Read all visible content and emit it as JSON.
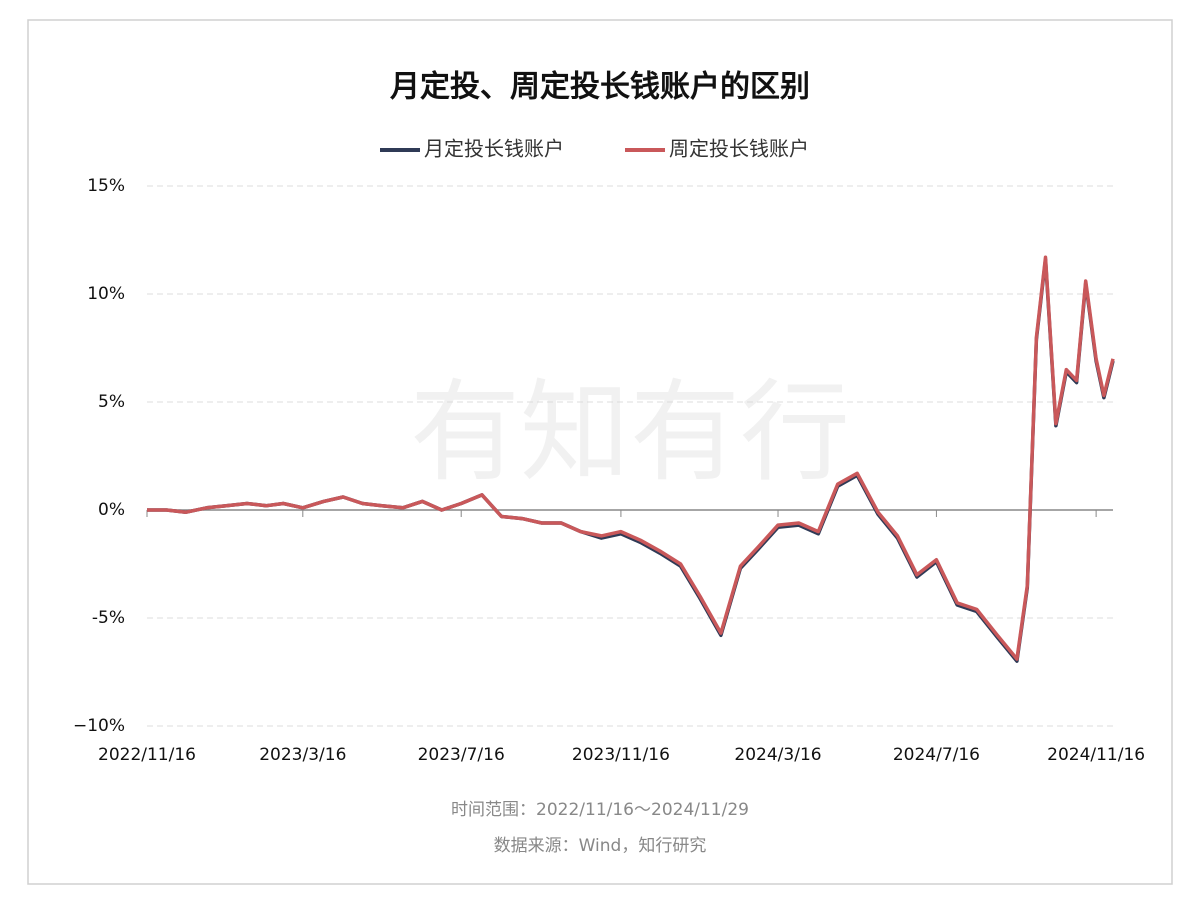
{
  "chart_data": {
    "type": "line",
    "title": "月定投、周定投长钱账户的区别",
    "watermark": "有知有行",
    "notes": [
      "时间范围：2022/11/16～2024/11/29",
      "数据来源：Wind，知行研究"
    ],
    "x": [
      "2022/11/16",
      "2022/12/1",
      "2022/12/16",
      "2023/1/1",
      "2023/1/16",
      "2023/2/1",
      "2023/2/16",
      "2023/3/1",
      "2023/3/16",
      "2023/4/1",
      "2023/4/16",
      "2023/5/1",
      "2023/5/16",
      "2023/6/1",
      "2023/6/16",
      "2023/7/1",
      "2023/7/16",
      "2023/8/1",
      "2023/8/16",
      "2023/9/1",
      "2023/9/16",
      "2023/10/1",
      "2023/10/16",
      "2023/11/1",
      "2023/11/16",
      "2023/12/1",
      "2023/12/16",
      "2024/1/1",
      "2024/1/16",
      "2024/2/1",
      "2024/2/16",
      "2024/3/1",
      "2024/3/16",
      "2024/4/1",
      "2024/4/16",
      "2024/5/1",
      "2024/5/16",
      "2024/6/1",
      "2024/6/16",
      "2024/7/1",
      "2024/7/16",
      "2024/8/1",
      "2024/8/16",
      "2024/9/1",
      "2024/9/16",
      "2024/9/24",
      "2024/10/1",
      "2024/10/8",
      "2024/10/16",
      "2024/10/24",
      "2024/11/1",
      "2024/11/8",
      "2024/11/16",
      "2024/11/22",
      "2024/11/29"
    ],
    "series": [
      {
        "name": "月定投长钱账户",
        "color": "#2f3a56",
        "values": [
          0,
          0,
          -0.1,
          0.1,
          0.2,
          0.3,
          0.2,
          0.3,
          0.1,
          0.4,
          0.6,
          0.3,
          0.2,
          0.1,
          0.4,
          0.0,
          0.3,
          0.7,
          -0.3,
          -0.4,
          -0.6,
          -0.6,
          -1.0,
          -1.3,
          -1.1,
          -1.5,
          -2.0,
          -2.6,
          -4.1,
          -5.8,
          -2.7,
          -1.8,
          -0.8,
          -0.7,
          -1.1,
          1.1,
          1.6,
          -0.2,
          -1.3,
          -3.1,
          -2.4,
          -4.4,
          -4.7,
          -5.9,
          -7.0,
          -3.6,
          7.9,
          11.6,
          3.9,
          6.4,
          5.9,
          10.5,
          6.9,
          5.2,
          6.9
        ]
      },
      {
        "name": "周定投长钱账户",
        "color": "#c9585a",
        "values": [
          0,
          0,
          -0.1,
          0.1,
          0.2,
          0.3,
          0.2,
          0.3,
          0.1,
          0.4,
          0.6,
          0.3,
          0.2,
          0.1,
          0.4,
          0.0,
          0.3,
          0.7,
          -0.3,
          -0.4,
          -0.6,
          -0.6,
          -1.0,
          -1.2,
          -1.0,
          -1.4,
          -1.9,
          -2.5,
          -4.0,
          -5.7,
          -2.6,
          -1.7,
          -0.7,
          -0.6,
          -1.0,
          1.2,
          1.7,
          -0.1,
          -1.2,
          -3.0,
          -2.3,
          -4.3,
          -4.6,
          -5.8,
          -6.9,
          -3.5,
          8.0,
          11.7,
          4.0,
          6.5,
          6.0,
          10.6,
          7.0,
          5.3,
          7.0
        ]
      }
    ],
    "xlim": [
      "2022/11/16",
      "2024/11/29"
    ],
    "xticks": [
      "2022/11/16",
      "2023/3/16",
      "2023/7/16",
      "2023/11/16",
      "2024/3/16",
      "2024/7/16",
      "2024/11/16"
    ],
    "ylim": [
      -10,
      15
    ],
    "yticks": [
      {
        "value": -10,
        "label": "−10%"
      },
      {
        "value": -5,
        "label": "-5%"
      },
      {
        "value": 0,
        "label": "0%"
      },
      {
        "value": 5,
        "label": "5%"
      },
      {
        "value": 10,
        "label": "10%"
      },
      {
        "value": 15,
        "label": "15%"
      }
    ],
    "grid": true
  }
}
